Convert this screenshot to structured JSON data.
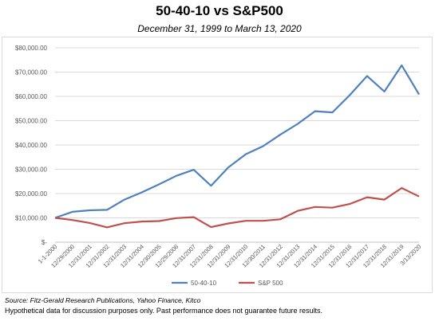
{
  "page": {
    "title": "50-40-10 vs S&P500",
    "subtitle": "December 31, 1999 to March 13, 2020",
    "source": "Source: Fitz-Gerald Research Publications, Yahoo Finance, Kitco",
    "note": "Hypothetical data for discussion purposes only. Past performance does not guarantee future results."
  },
  "chart_data": {
    "type": "line",
    "title": "50-40-10 vs S&P500",
    "subtitle": "December 31, 1999 to March 13, 2020",
    "xlabel": "",
    "ylabel": "",
    "ylim": [
      0,
      80000
    ],
    "yticks": [
      0,
      10000,
      20000,
      30000,
      40000,
      50000,
      60000,
      70000,
      80000
    ],
    "ytick_labels": [
      "$-",
      "$10,000.00",
      "$20,000.00",
      "$30,000.00",
      "$40,000.00",
      "$50,000.00",
      "$60,000.00",
      "$70,000.00",
      "$80,000.00"
    ],
    "grid": true,
    "legend_position": "bottom",
    "x": [
      "1-1-2000",
      "12/29/2000",
      "12/31/2001",
      "12/31/2002",
      "12/31/2003",
      "12/31/2004",
      "12/30/2005",
      "12/29/2006",
      "12/31/2007",
      "12/31/2008",
      "12/31/2009",
      "12/31/2010",
      "12/30/2011",
      "12/31/2012",
      "12/31/2013",
      "12/31/2014",
      "12/31/2015",
      "12/31/2016",
      "12/31/2017",
      "12/31/2018",
      "12/31/2019",
      "3/13/2020"
    ],
    "series": [
      {
        "name": "50-40-10",
        "color": "#4f81bd",
        "values": [
          10000,
          12500,
          13100,
          13300,
          17500,
          20500,
          23800,
          27300,
          29800,
          23200,
          30800,
          36200,
          39500,
          44300,
          48700,
          53900,
          53400,
          60500,
          68400,
          62000,
          72800,
          60800
        ]
      },
      {
        "name": "S&P 500",
        "color": "#c0504d",
        "values": [
          10000,
          9100,
          7900,
          6100,
          7800,
          8500,
          8700,
          9900,
          10300,
          6200,
          7700,
          8800,
          8800,
          9400,
          12900,
          14500,
          14200,
          15700,
          18500,
          17500,
          22300,
          18800
        ]
      }
    ]
  }
}
